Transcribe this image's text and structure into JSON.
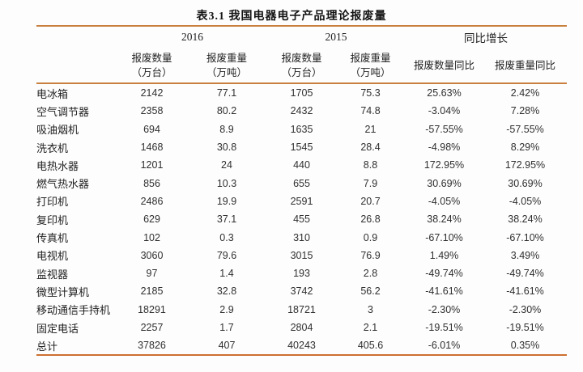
{
  "title": "表3.1 我国电器电子产品理论报废量",
  "colors": {
    "rule_line": "#c9803f",
    "rule_line_bottom": "#cc6f2f",
    "text": "#2e2e2e",
    "background": "#fdfdfd"
  },
  "table": {
    "col_groups": [
      {
        "label": "2016"
      },
      {
        "label": "2015"
      },
      {
        "label": "同比增长"
      }
    ],
    "sub_headers": [
      {
        "line1": "报废数量",
        "line2": "（万台）"
      },
      {
        "line1": "报废重量",
        "line2": "（万吨）"
      },
      {
        "line1": "报废数量",
        "line2": "（万台）"
      },
      {
        "line1": "报废重量",
        "line2": "（万吨）"
      },
      {
        "label": "报废数量同比"
      },
      {
        "label": "报废重量同比"
      }
    ],
    "rows": [
      {
        "name": "电冰箱",
        "c": [
          "2142",
          "77.1",
          "1705",
          "75.3",
          "25.63%",
          "2.42%"
        ]
      },
      {
        "name": "空气调节器",
        "c": [
          "2358",
          "80.2",
          "2432",
          "74.8",
          "-3.04%",
          "7.28%"
        ]
      },
      {
        "name": "吸油烟机",
        "c": [
          "694",
          "8.9",
          "1635",
          "21",
          "-57.55%",
          "-57.55%"
        ]
      },
      {
        "name": "洗衣机",
        "c": [
          "1468",
          "30.8",
          "1545",
          "28.4",
          "-4.98%",
          "8.29%"
        ]
      },
      {
        "name": "电热水器",
        "c": [
          "1201",
          "24",
          "440",
          "8.8",
          "172.95%",
          "172.95%"
        ]
      },
      {
        "name": "燃气热水器",
        "c": [
          "856",
          "10.3",
          "655",
          "7.9",
          "30.69%",
          "30.69%"
        ]
      },
      {
        "name": "打印机",
        "c": [
          "2486",
          "19.9",
          "2591",
          "20.7",
          "-4.05%",
          "-4.05%"
        ]
      },
      {
        "name": "复印机",
        "c": [
          "629",
          "37.1",
          "455",
          "26.8",
          "38.24%",
          "38.24%"
        ]
      },
      {
        "name": "传真机",
        "c": [
          "102",
          "0.3",
          "310",
          "0.9",
          "-67.10%",
          "-67.10%"
        ]
      },
      {
        "name": "电视机",
        "c": [
          "3060",
          "79.6",
          "3015",
          "76.9",
          "1.49%",
          "3.49%"
        ]
      },
      {
        "name": "监视器",
        "c": [
          "97",
          "1.4",
          "193",
          "2.8",
          "-49.74%",
          "-49.74%"
        ]
      },
      {
        "name": "微型计算机",
        "c": [
          "2185",
          "32.8",
          "3742",
          "56.2",
          "-41.61%",
          "-41.61%"
        ]
      },
      {
        "name": "移动通信手持机",
        "c": [
          "18291",
          "2.9",
          "18721",
          "3",
          "-2.30%",
          "-2.30%"
        ]
      },
      {
        "name": "固定电话",
        "c": [
          "2257",
          "1.7",
          "2804",
          "2.1",
          "-19.51%",
          "-19.51%"
        ]
      },
      {
        "name": "总计",
        "c": [
          "37826",
          "407",
          "40243",
          "405.6",
          "-6.01%",
          "0.35%"
        ]
      }
    ]
  }
}
